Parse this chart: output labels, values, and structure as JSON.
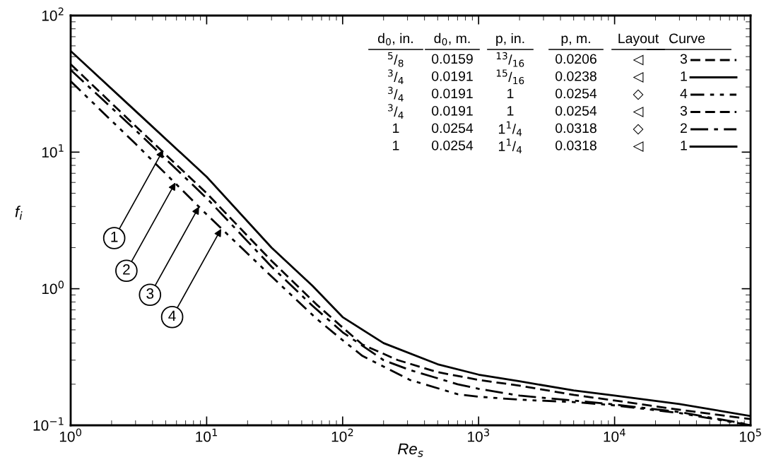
{
  "chart_data": {
    "type": "line",
    "xlabel": "Re$_{s}$",
    "ylabel": "f$_{i}$",
    "log": "xy",
    "grid": false,
    "marker": "none",
    "xlim": [
      1,
      100000
    ],
    "ylim": [
      0.1,
      100
    ],
    "xticks": [
      {
        "value": 1,
        "label": "10$^{0}$"
      },
      {
        "value": 10,
        "label": "10$^{1}$"
      },
      {
        "value": 100,
        "label": "10$^{2}$"
      },
      {
        "value": 1000,
        "label": "10$^{3}$"
      },
      {
        "value": 10000,
        "label": "10$^{4}$"
      },
      {
        "value": 100000,
        "label": "10$^{5}$"
      }
    ],
    "yticks": [
      {
        "value": 0.1,
        "label": "10$^{−1}$"
      },
      {
        "value": 1,
        "label": "10$^{0}$"
      },
      {
        "value": 10,
        "label": "10$^{1}$"
      },
      {
        "value": 100,
        "label": "10$^{2}$"
      }
    ],
    "series": [
      {
        "color": "#000000",
        "line_style": "solid",
        "x": [
          1,
          3,
          10,
          30,
          60,
          100,
          200,
          500,
          1000,
          2000,
          5000,
          10000,
          30000,
          100000
        ],
        "values": [
          55,
          20,
          6.6,
          2.0,
          1.05,
          0.62,
          0.4,
          0.28,
          0.235,
          0.21,
          0.18,
          0.165,
          0.143,
          0.117
        ]
      },
      {
        "color": "#000000",
        "line_style": "dashdot",
        "x": [
          1,
          3,
          10,
          30,
          60,
          100,
          200,
          312,
          700,
          1000,
          2000,
          5000,
          10000,
          30000,
          100000
        ],
        "values": [
          40,
          14.5,
          4.6,
          1.45,
          0.75,
          0.48,
          0.3,
          0.254,
          0.2,
          0.185,
          0.165,
          0.152,
          0.142,
          0.125,
          0.101
        ]
      },
      {
        "color": "#000000",
        "line_style": "dashed",
        "x": [
          1,
          3,
          10,
          30,
          64,
          100,
          140,
          255,
          500,
          1000,
          2000,
          5000,
          10000,
          30000,
          100000
        ],
        "values": [
          44,
          15.5,
          5.0,
          1.6,
          0.77,
          0.52,
          0.39,
          0.3,
          0.245,
          0.215,
          0.195,
          0.167,
          0.152,
          0.13,
          0.111
        ]
      },
      {
        "color": "#000000",
        "line_style": "dashdotdot",
        "x": [
          1,
          3,
          10,
          28.5,
          64,
          100,
          140,
          312,
          700,
          1000,
          2000,
          5000,
          10000,
          30000,
          100000
        ],
        "values": [
          33,
          11.5,
          3.5,
          1.29,
          0.605,
          0.42,
          0.322,
          0.215,
          0.169,
          0.162,
          0.154,
          0.148,
          0.14,
          0.123,
          0.1
        ]
      }
    ],
    "annotations": [
      {
        "text": "1",
        "x": 4.8,
        "y": 10.4
      },
      {
        "text": "2",
        "x": 5.9,
        "y": 6.0
      },
      {
        "text": "3",
        "x": 8.8,
        "y": 4.0
      },
      {
        "text": "4",
        "x": 12.8,
        "y": 2.75
      },
      "d$_{0}$, in.",
      "d$_{0}$, m.",
      "p, in.",
      "p, m.",
      "Layout",
      "Curve",
      "$^{5}$/$_{8}$",
      "0.0159",
      "$^{13}$/$_{16}$",
      "0.0206",
      "◁",
      "3",
      "$^{3}$/$_{4}$",
      "0.0191",
      "$^{15}$/$_{16}$",
      "0.0238",
      "◁",
      "1",
      "$^{3}$/$_{4}$",
      "0.0191",
      "1",
      "0.0254",
      "◇",
      "4",
      "$^{3}$/$_{4}$",
      "0.0191",
      "1",
      "0.0254",
      "◁",
      "3",
      "1",
      "0.0254",
      "1$^{1}$/$_{4}$",
      "0.0318",
      "◇",
      "2",
      "1",
      "0.0254",
      "1$^{1}$/$_{4}$",
      "0.0318",
      "◁",
      "1"
    ]
  }
}
